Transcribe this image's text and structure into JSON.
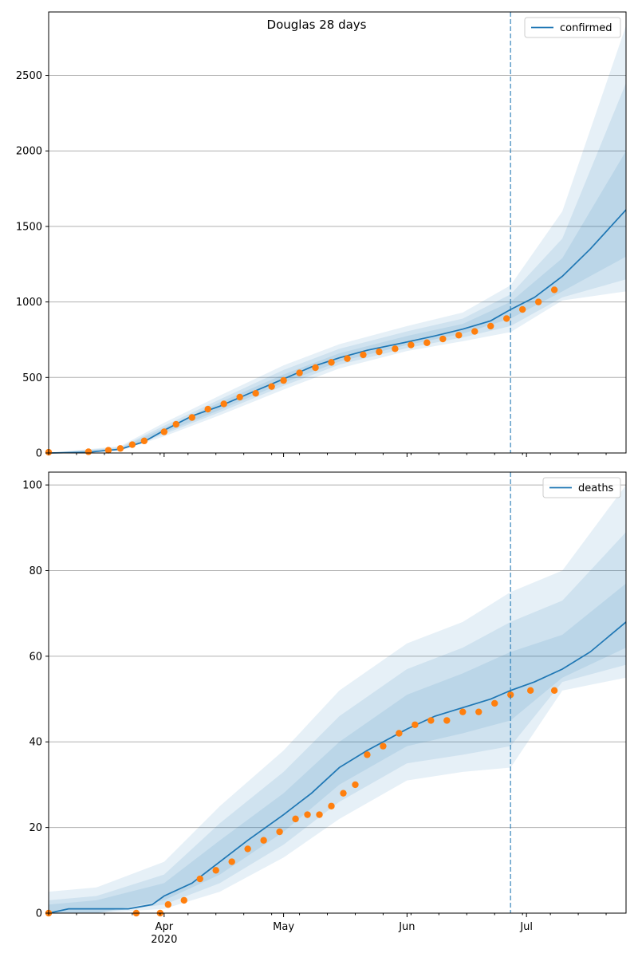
{
  "figure": {
    "title": "Douglas 28 days"
  },
  "colors": {
    "line": "#1f77b4",
    "points": "#ff7f0e",
    "band": "#1f77b4",
    "grid": "#b0b0b0",
    "vline": "#1f77b4"
  },
  "chart_data": [
    {
      "type": "line",
      "title": "Douglas 28 days",
      "legend": {
        "label": "confirmed",
        "placement": "top-right"
      },
      "x_range": [
        "2020-03-03",
        "2020-07-26"
      ],
      "ylim": [
        0,
        2920
      ],
      "yticks": [
        0,
        500,
        1000,
        1500,
        2000,
        2500
      ],
      "grid": "horizontal",
      "forecast_start": "2020-06-27",
      "model_curve": {
        "name": "confirmed",
        "x": [
          "2020-03-03",
          "2020-03-13",
          "2020-03-21",
          "2020-03-27",
          "2020-04-01",
          "2020-04-08",
          "2020-04-15",
          "2020-04-22",
          "2020-05-01",
          "2020-05-08",
          "2020-05-15",
          "2020-05-22",
          "2020-06-01",
          "2020-06-08",
          "2020-06-15",
          "2020-06-22",
          "2020-06-27",
          "2020-07-03",
          "2020-07-10",
          "2020-07-17",
          "2020-07-26"
        ],
        "y": [
          0,
          5,
          25,
          75,
          150,
          245,
          310,
          390,
          490,
          570,
          630,
          680,
          735,
          775,
          820,
          875,
          950,
          1030,
          1170,
          1350,
          1610
        ]
      },
      "bands": [
        {
          "x": [
            "2020-03-03",
            "2020-03-21",
            "2020-04-01",
            "2020-04-15",
            "2020-05-01",
            "2020-05-15",
            "2020-06-01",
            "2020-06-15",
            "2020-06-27",
            "2020-07-10",
            "2020-07-26"
          ],
          "lower": [
            0,
            15,
            110,
            250,
            420,
            560,
            675,
            740,
            800,
            1010,
            1070
          ],
          "upper": [
            0,
            45,
            200,
            380,
            580,
            720,
            840,
            930,
            1110,
            1600,
            2830
          ]
        },
        {
          "x": [
            "2020-03-03",
            "2020-03-21",
            "2020-04-01",
            "2020-04-15",
            "2020-05-01",
            "2020-05-15",
            "2020-06-01",
            "2020-06-15",
            "2020-06-27",
            "2020-07-10",
            "2020-07-26"
          ],
          "lower": [
            0,
            18,
            125,
            270,
            445,
            585,
            695,
            765,
            840,
            1030,
            1150
          ],
          "upper": [
            0,
            38,
            180,
            355,
            550,
            690,
            805,
            890,
            1050,
            1420,
            2450
          ]
        },
        {
          "x": [
            "2020-03-03",
            "2020-03-21",
            "2020-04-01",
            "2020-04-15",
            "2020-05-01",
            "2020-05-15",
            "2020-06-01",
            "2020-06-15",
            "2020-06-27",
            "2020-07-10",
            "2020-07-26"
          ],
          "lower": [
            0,
            21,
            135,
            285,
            465,
            605,
            715,
            790,
            890,
            1070,
            1300
          ],
          "upper": [
            0,
            32,
            165,
            335,
            520,
            660,
            775,
            855,
            1000,
            1290,
            2000
          ]
        }
      ],
      "observed": {
        "x": [
          "2020-03-03",
          "2020-03-13",
          "2020-03-18",
          "2020-03-21",
          "2020-03-24",
          "2020-03-27",
          "2020-04-01",
          "2020-04-04",
          "2020-04-08",
          "2020-04-12",
          "2020-04-16",
          "2020-04-20",
          "2020-04-24",
          "2020-04-28",
          "2020-05-01",
          "2020-05-05",
          "2020-05-09",
          "2020-05-13",
          "2020-05-17",
          "2020-05-21",
          "2020-05-25",
          "2020-05-29",
          "2020-06-02",
          "2020-06-06",
          "2020-06-10",
          "2020-06-14",
          "2020-06-18",
          "2020-06-22",
          "2020-06-26",
          "2020-06-30",
          "2020-07-04",
          "2020-07-08"
        ],
        "y": [
          5,
          8,
          18,
          30,
          55,
          80,
          140,
          190,
          235,
          290,
          325,
          370,
          395,
          440,
          480,
          530,
          565,
          600,
          625,
          650,
          670,
          690,
          715,
          730,
          755,
          780,
          805,
          840,
          890,
          950,
          1000,
          1080
        ]
      }
    },
    {
      "type": "line",
      "legend": {
        "label": "deaths",
        "placement": "top-right"
      },
      "x_range": [
        "2020-03-03",
        "2020-07-26"
      ],
      "ylim": [
        0,
        103
      ],
      "yticks": [
        0,
        20,
        40,
        60,
        80,
        100
      ],
      "xticks": [
        "Apr",
        "May",
        "Jun",
        "Jul"
      ],
      "xtick_dates": [
        "2020-04-01",
        "2020-05-01",
        "2020-06-01",
        "2020-07-01"
      ],
      "year_label": "2020",
      "grid": "horizontal",
      "forecast_start": "2020-06-27",
      "model_curve": {
        "name": "deaths",
        "x": [
          "2020-03-03",
          "2020-03-08",
          "2020-03-23",
          "2020-03-29",
          "2020-04-01",
          "2020-04-08",
          "2020-04-15",
          "2020-04-22",
          "2020-05-01",
          "2020-05-08",
          "2020-05-15",
          "2020-05-22",
          "2020-06-01",
          "2020-06-08",
          "2020-06-15",
          "2020-06-22",
          "2020-06-27",
          "2020-07-03",
          "2020-07-10",
          "2020-07-17",
          "2020-07-26"
        ],
        "y": [
          0,
          1,
          1,
          2,
          4,
          7,
          12,
          17,
          23,
          28,
          34,
          38,
          43,
          46,
          48,
          50,
          52,
          54,
          57,
          61,
          68
        ]
      },
      "bands": [
        {
          "x": [
            "2020-03-03",
            "2020-03-15",
            "2020-04-01",
            "2020-04-15",
            "2020-05-01",
            "2020-05-15",
            "2020-06-01",
            "2020-06-15",
            "2020-06-27",
            "2020-07-10",
            "2020-07-26"
          ],
          "lower": [
            0,
            0,
            1,
            5,
            13,
            22,
            31,
            33,
            34,
            52,
            55
          ],
          "upper": [
            5,
            6,
            12,
            25,
            38,
            52,
            63,
            68,
            75,
            80,
            100
          ]
        },
        {
          "x": [
            "2020-03-03",
            "2020-03-15",
            "2020-04-01",
            "2020-04-15",
            "2020-05-01",
            "2020-05-15",
            "2020-06-01",
            "2020-06-15",
            "2020-06-27",
            "2020-07-10",
            "2020-07-26"
          ],
          "lower": [
            0,
            0,
            2,
            7,
            16,
            26,
            35,
            37,
            39,
            54,
            58
          ],
          "upper": [
            3,
            4,
            9,
            21,
            33,
            46,
            57,
            62,
            68,
            73,
            89
          ]
        },
        {
          "x": [
            "2020-03-03",
            "2020-03-15",
            "2020-04-01",
            "2020-04-15",
            "2020-05-01",
            "2020-05-15",
            "2020-06-01",
            "2020-06-15",
            "2020-06-27",
            "2020-07-10",
            "2020-07-26"
          ],
          "lower": [
            0,
            0,
            3,
            9,
            19,
            30,
            39,
            42,
            45,
            55,
            62
          ],
          "upper": [
            2,
            3,
            7,
            17,
            28,
            40,
            51,
            56,
            61,
            65,
            77
          ]
        }
      ],
      "observed": {
        "x": [
          "2020-03-03",
          "2020-03-25",
          "2020-03-31",
          "2020-04-02",
          "2020-04-06",
          "2020-04-10",
          "2020-04-14",
          "2020-04-18",
          "2020-04-22",
          "2020-04-26",
          "2020-04-30",
          "2020-05-04",
          "2020-05-07",
          "2020-05-10",
          "2020-05-13",
          "2020-05-16",
          "2020-05-19",
          "2020-05-22",
          "2020-05-26",
          "2020-05-30",
          "2020-06-03",
          "2020-06-07",
          "2020-06-11",
          "2020-06-15",
          "2020-06-19",
          "2020-06-23",
          "2020-06-27",
          "2020-07-02",
          "2020-07-08"
        ],
        "y": [
          0,
          0,
          0,
          2,
          3,
          8,
          10,
          12,
          15,
          17,
          19,
          22,
          23,
          23,
          25,
          28,
          30,
          37,
          39,
          42,
          44,
          45,
          45,
          47,
          47,
          49,
          51,
          52,
          52
        ]
      }
    }
  ]
}
